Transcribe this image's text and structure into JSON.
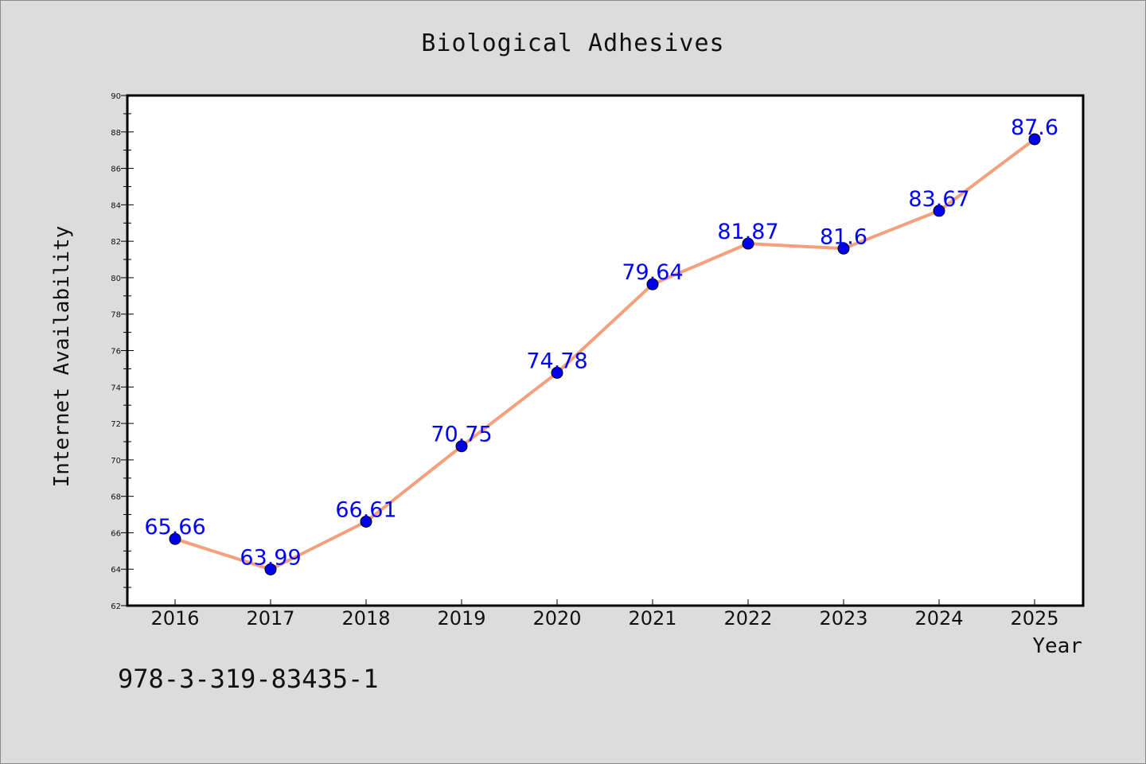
{
  "chart_data": {
    "type": "line",
    "title": "Biological Adhesives",
    "xlabel": "Year",
    "ylabel": "Internet Availability",
    "categories": [
      "2016",
      "2017",
      "2018",
      "2019",
      "2020",
      "2021",
      "2022",
      "2023",
      "2024",
      "2025"
    ],
    "series": [
      {
        "values": [
          65.66,
          63.99,
          66.61,
          70.75,
          74.78,
          79.64,
          81.87,
          81.6,
          83.67,
          87.6
        ],
        "labels": [
          "65.66",
          "63.99",
          "66.61",
          "70.75",
          "74.78",
          "79.64",
          "81.87",
          "81.6",
          "83.67",
          "87.6"
        ],
        "line_color": "#f4a07c",
        "marker_color": "#0000ee"
      }
    ],
    "ylim": [
      62,
      90
    ],
    "yticks": [
      "62",
      "64",
      "66",
      "68",
      "70",
      "72",
      "74",
      "76",
      "78",
      "80",
      "82",
      "84",
      "86",
      "88",
      "90"
    ],
    "grid": false,
    "label_color": "#0000ff"
  },
  "footnote": "978-3-319-83435-1"
}
